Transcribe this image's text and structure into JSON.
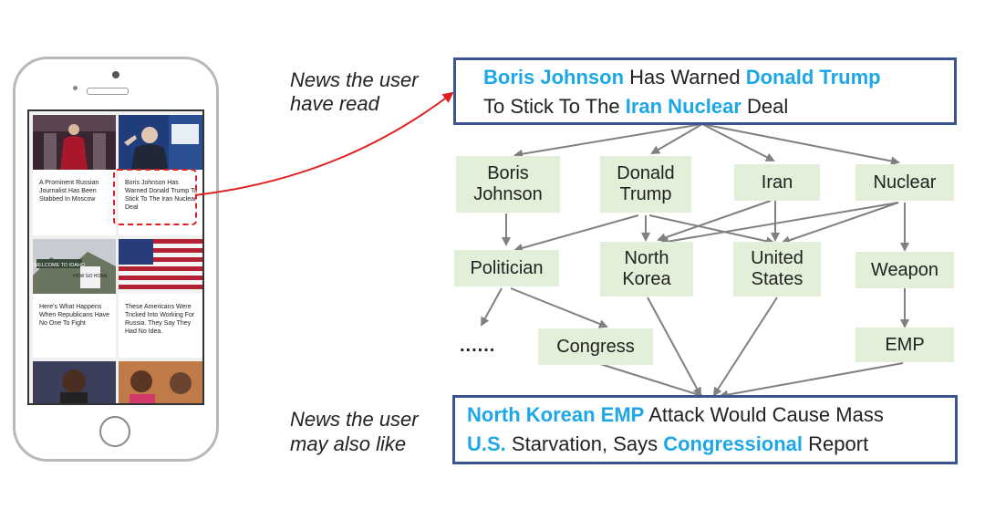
{
  "labels": {
    "read_line1": "News the user",
    "read_line2": "have read",
    "like_line1": "News the user",
    "like_line2": "may also like"
  },
  "top_news": {
    "l1_a": "Boris Johnson",
    "l1_b": " Has Warned ",
    "l1_c": "Donald Trump",
    "l2_a": "To Stick To The ",
    "l2_b": "Iran Nuclear",
    "l2_c": " Deal"
  },
  "bottom_news": {
    "l1_a": "North Korean EMP",
    "l1_b": " Attack Would Cause Mass",
    "l2_a": "U.S.",
    "l2_b": " Starvation, Says ",
    "l2_c": "Congressional",
    "l2_d": " Report"
  },
  "entities": {
    "boris_1": "Boris",
    "boris_2": "Johnson",
    "donald_1": "Donald",
    "donald_2": "Trump",
    "iran": "Iran",
    "nuclear": "Nuclear"
  },
  "related": {
    "politician": "Politician",
    "nk_1": "North",
    "nk_2": "Korea",
    "us_1": "United",
    "us_2": "States",
    "weapon": "Weapon",
    "ellipsis": "......",
    "congress": "Congress",
    "emp": "EMP"
  },
  "phone_feed": [
    {
      "caption": "A Prominent Russian Journalist Has Been Stabbed In Moscow"
    },
    {
      "caption": "Boris Johnson Has Warned Donald Trump To Stick To The Iran Nuclear Deal"
    },
    {
      "caption": "Here's What Happens When Republicans Have No One To Fight"
    },
    {
      "caption": "These Americans Were Tricked Into Working For Russia. They Say They Had No Idea."
    }
  ],
  "photo_text": {
    "welcome": "WELCOME TO IDAHO",
    "sign": "HOW GO HOME"
  },
  "colors": {
    "entity_highlight": "#1ea7e6",
    "box_border": "#3a5592",
    "node_fill": "#e2f0d9",
    "arrow": "#808080",
    "link_arrow": "#e02020"
  }
}
